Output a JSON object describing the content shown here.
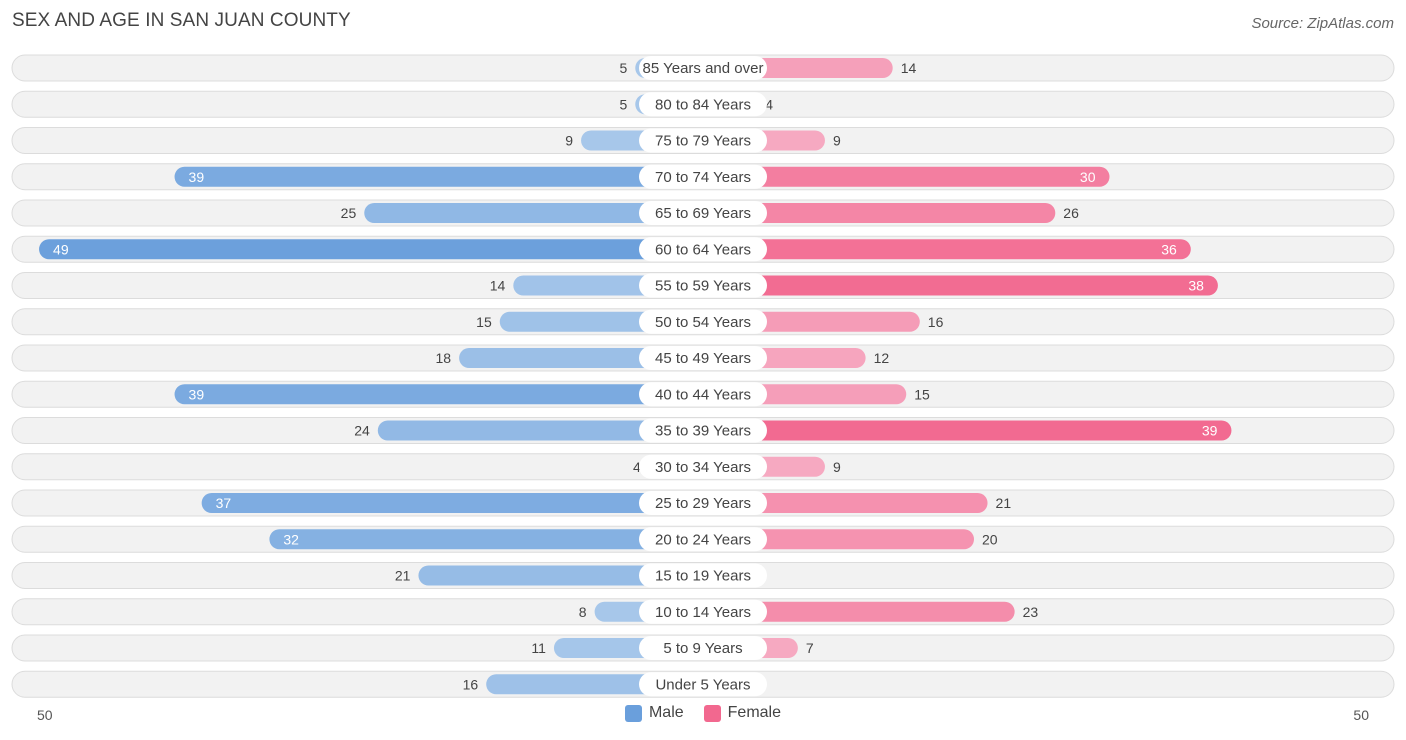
{
  "title": "SEX AND AGE IN SAN JUAN COUNTY",
  "source": "Source: ZipAtlas.com",
  "colors": {
    "male_light": "#a7c7ea",
    "male_dark": "#6a9fdc",
    "female_light": "#f6a9c1",
    "female_dark": "#f2688f",
    "row_bg": "#f2f2f2",
    "row_border": "#dcdcdc"
  },
  "legend": {
    "male": "Male",
    "female": "Female"
  },
  "axis": {
    "left_label": "50",
    "right_label": "50"
  },
  "chart_data": {
    "type": "bar",
    "orientation": "horizontal-diverging",
    "title": "SEX AND AGE IN SAN JUAN COUNTY",
    "categories": [
      "85 Years and over",
      "80 to 84 Years",
      "75 to 79 Years",
      "70 to 74 Years",
      "65 to 69 Years",
      "60 to 64 Years",
      "55 to 59 Years",
      "50 to 54 Years",
      "45 to 49 Years",
      "40 to 44 Years",
      "35 to 39 Years",
      "30 to 34 Years",
      "25 to 29 Years",
      "20 to 24 Years",
      "15 to 19 Years",
      "10 to 14 Years",
      "5 to 9 Years",
      "Under 5 Years"
    ],
    "series": [
      {
        "name": "Male",
        "values": [
          5,
          5,
          9,
          39,
          25,
          49,
          14,
          15,
          18,
          39,
          24,
          4,
          37,
          32,
          21,
          8,
          11,
          16
        ]
      },
      {
        "name": "Female",
        "values": [
          14,
          4,
          9,
          30,
          26,
          36,
          38,
          16,
          12,
          15,
          39,
          9,
          21,
          20,
          0,
          23,
          7,
          0
        ]
      }
    ],
    "xlim": [
      -50,
      50
    ],
    "legend_position": "bottom-center"
  }
}
